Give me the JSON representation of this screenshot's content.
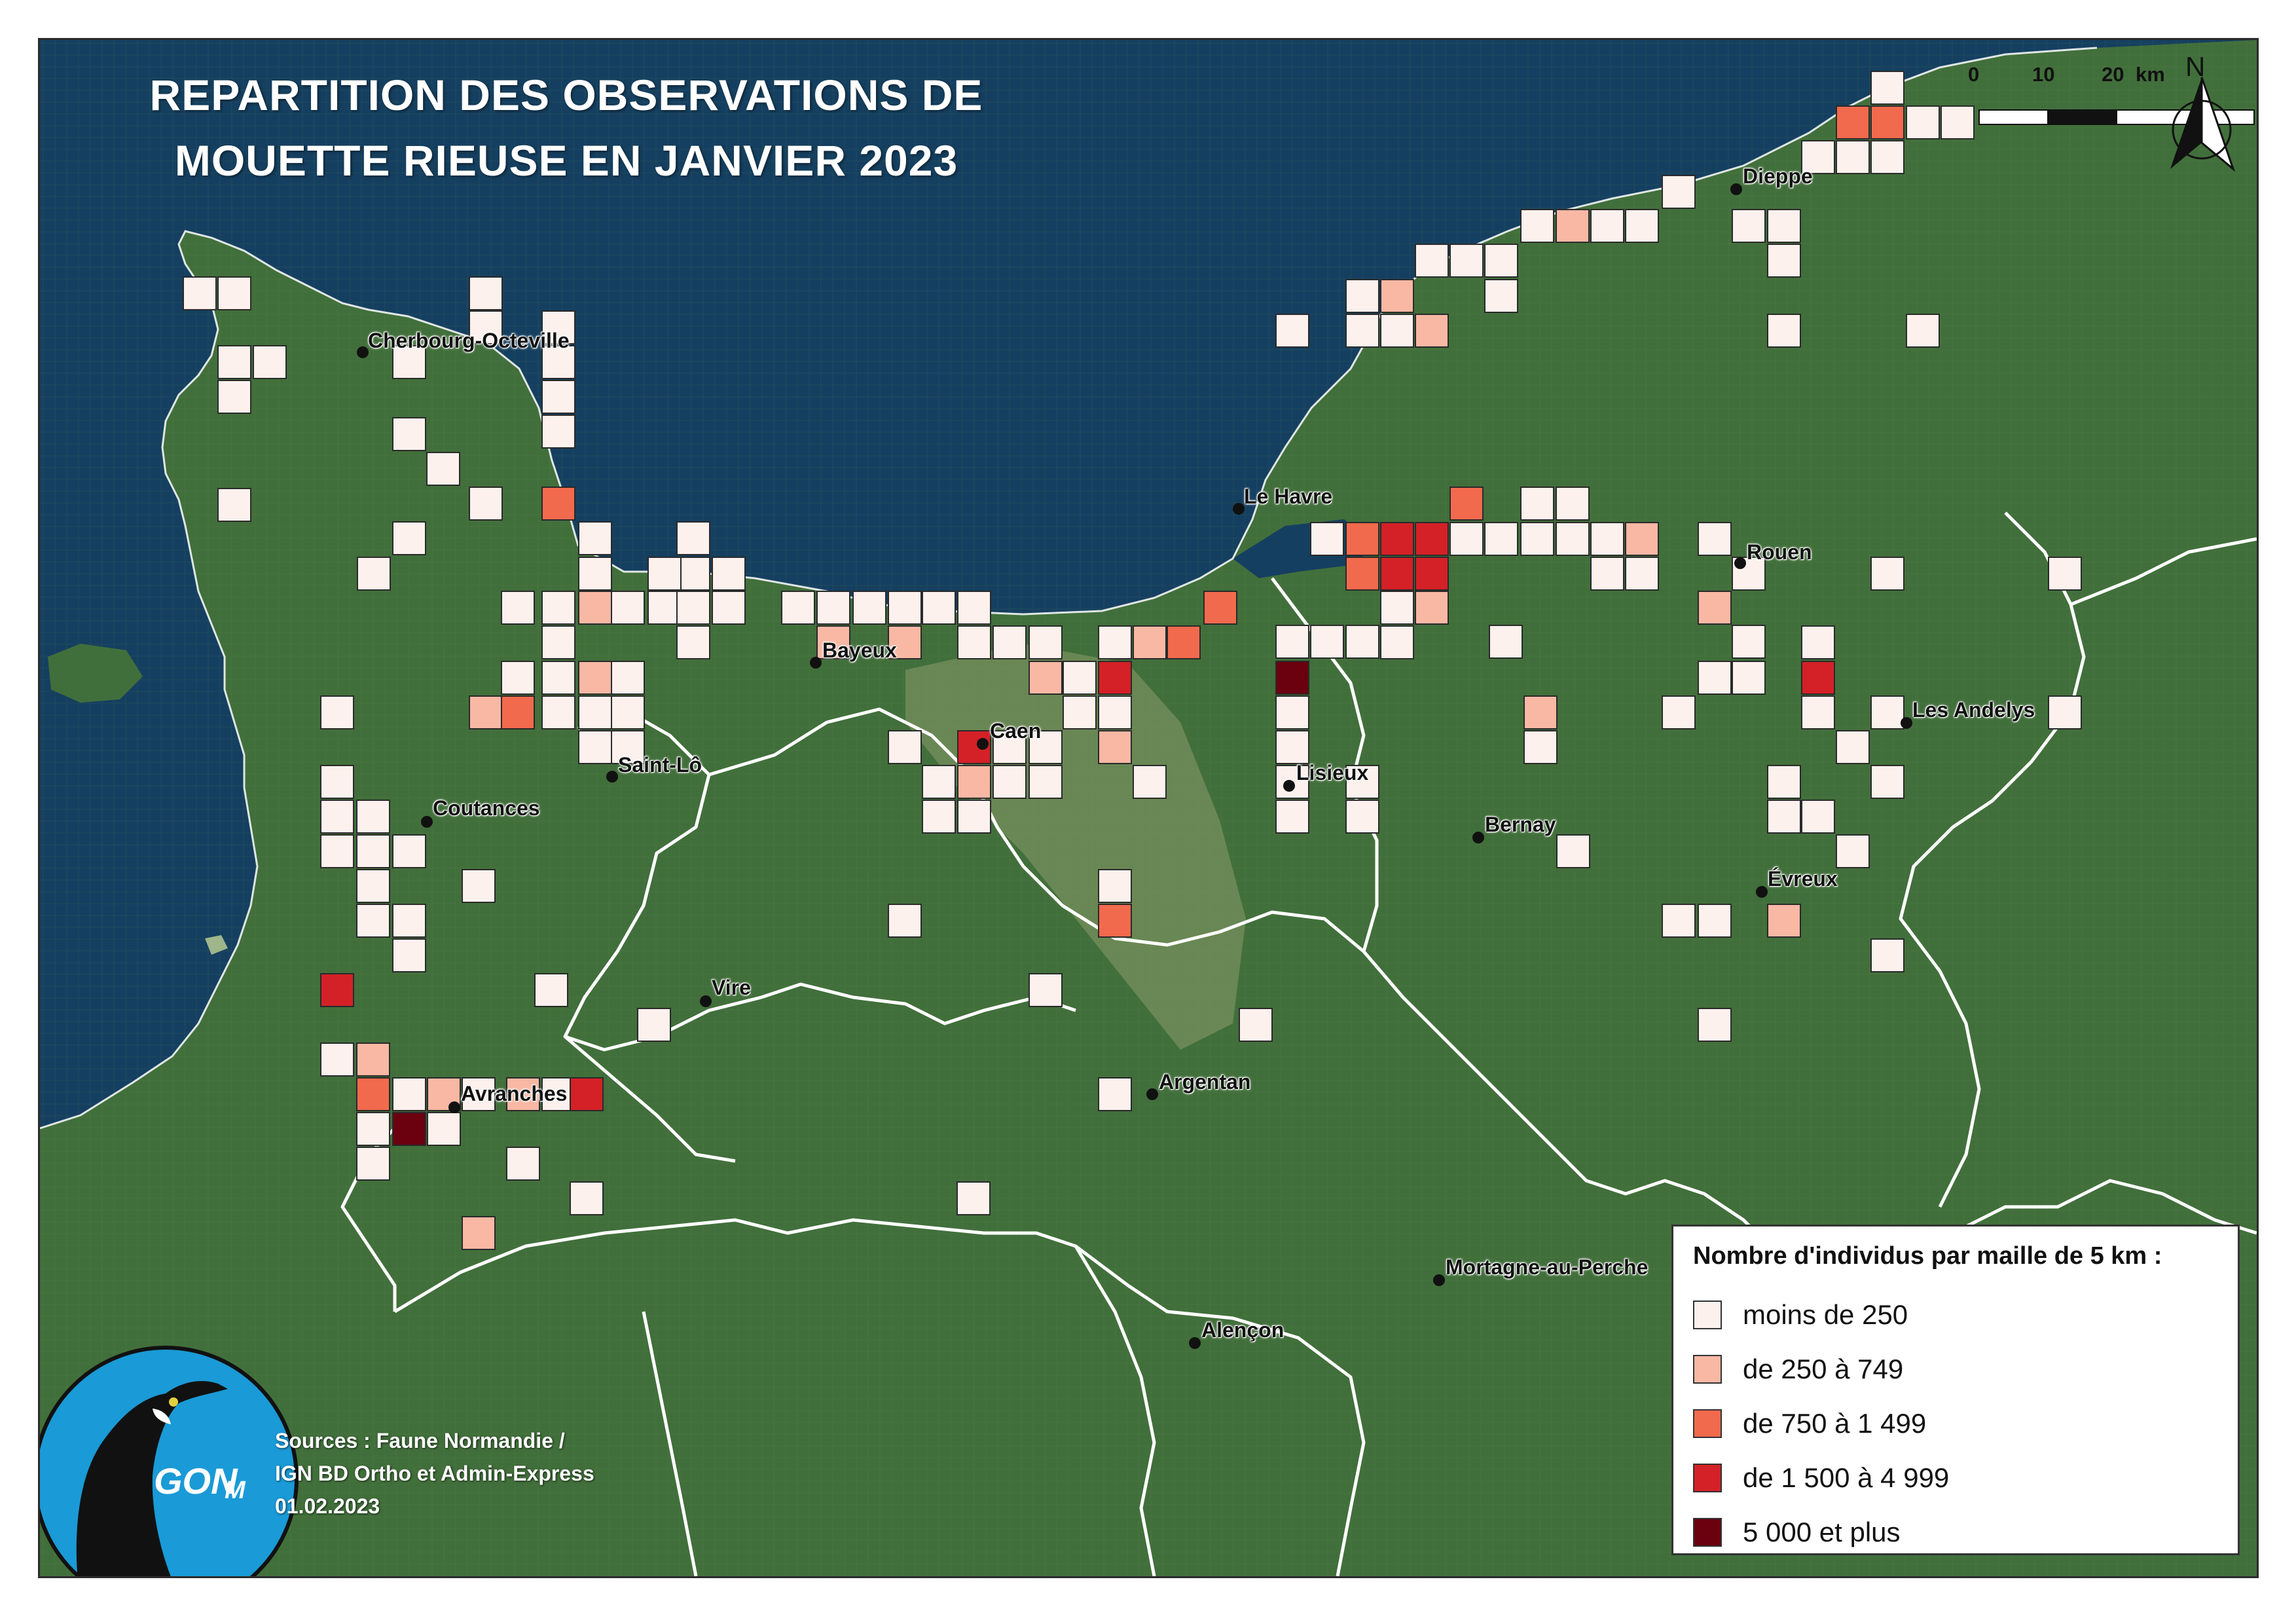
{
  "title": {
    "line1": "REPARTITION DES OBSERVATIONS DE",
    "line2": "MOUETTE RIEUSE EN JANVIER 2023"
  },
  "legend": {
    "title": "Nombre d'individus par maille de 5 km :",
    "classes": [
      {
        "label": "moins de 250",
        "color": "#fdf1ee"
      },
      {
        "label": "de 250 à 749",
        "color": "#f8b8a4"
      },
      {
        "label": "de 750 à 1 499",
        "color": "#f26a4d"
      },
      {
        "label": "de 1 500 à 4 999",
        "color": "#d42127"
      },
      {
        "label": "5 000 et plus",
        "color": "#6b000f"
      }
    ]
  },
  "towns": [
    {
      "name": "Cherbourg-Octeville"
    },
    {
      "name": "Dieppe"
    },
    {
      "name": "Le Havre"
    },
    {
      "name": "Rouen"
    },
    {
      "name": "Bayeux"
    },
    {
      "name": "Caen"
    },
    {
      "name": "Lisieux"
    },
    {
      "name": "Saint-Lô"
    },
    {
      "name": "Coutances"
    },
    {
      "name": "Les Andelys"
    },
    {
      "name": "Bernay"
    },
    {
      "name": "Évreux"
    },
    {
      "name": "Vire"
    },
    {
      "name": "Argentan"
    },
    {
      "name": "Avranches"
    },
    {
      "name": "Mortagne-au-Perche"
    },
    {
      "name": "Alençon"
    }
  ],
  "scale_bar": {
    "labels": [
      "0",
      "10",
      "20",
      "km"
    ]
  },
  "north_arrow": {
    "label": "N"
  },
  "sources": {
    "line1": "Sources : Faune Normandie /",
    "line2": "IGN BD Ortho et Admin-Express",
    "line3": "01.02.2023"
  },
  "logo": {
    "text": "GON",
    "suffix": "M",
    "icon": "cormorant-logo-icon"
  },
  "colors": {
    "sea": "#123d5e",
    "land": "#3f6e3b",
    "boundary": "#ffffff"
  }
}
